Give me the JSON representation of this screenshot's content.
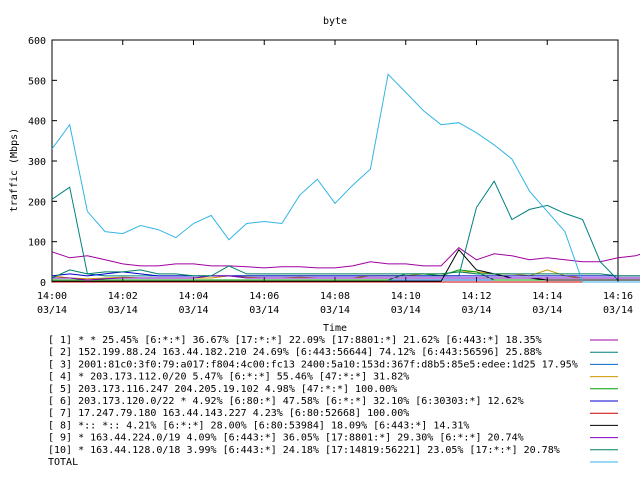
{
  "chart_data": {
    "type": "line",
    "title": "byte",
    "xlabel": "Time",
    "ylabel": "traffic (Mbps)",
    "ylim": [
      0,
      600
    ],
    "xlim": [
      0,
      16
    ],
    "yticks": [
      "0",
      "100",
      "200",
      "300",
      "400",
      "500",
      "600"
    ],
    "xticks": [
      {
        "time": "14:00",
        "date": "03/14"
      },
      {
        "time": "14:02",
        "date": "03/14"
      },
      {
        "time": "14:04",
        "date": "03/14"
      },
      {
        "time": "14:06",
        "date": "03/14"
      },
      {
        "time": "14:08",
        "date": "03/14"
      },
      {
        "time": "14:10",
        "date": "03/14"
      },
      {
        "time": "14:12",
        "date": "03/14"
      },
      {
        "time": "14:14",
        "date": "03/14"
      },
      {
        "time": "14:16",
        "date": "03/14"
      }
    ],
    "x_step_minutes": 0.5,
    "series": [
      {
        "label": "[ 1] * * 25.45%  [6:*:*] 36.67% [17:*:*] 22.09% [17:8801:*] 21.62% [6:443:*] 18.35%",
        "color": "#a000a0",
        "values": [
          75,
          60,
          65,
          55,
          45,
          40,
          40,
          45,
          45,
          40,
          40,
          38,
          35,
          38,
          38,
          35,
          35,
          40,
          50,
          45,
          45,
          40,
          40,
          85,
          55,
          70,
          65,
          55,
          60,
          55,
          50,
          50,
          60,
          65,
          80,
          95,
          75,
          75,
          60,
          5
        ]
      },
      {
        "label": "[ 2] 152.199.88.24 163.44.182.210 24.69%  [6:443:56644] 74.12% [6:443:56596] 25.88%",
        "color": "#008080",
        "values": [
          205,
          235,
          20,
          15,
          15,
          15,
          15,
          15,
          15,
          15,
          15,
          15,
          15,
          15,
          15,
          15,
          15,
          15,
          15,
          15,
          15,
          15,
          15,
          15,
          185,
          250,
          155,
          180,
          190,
          170,
          155,
          50,
          5,
          5,
          5,
          5,
          5,
          5,
          5,
          0
        ]
      },
      {
        "label": "[ 3] 2001:81c0:3f0:79:a017:f804:4c00:fc13 2400:5a10:153d:367f:d8b5:85e5:edee:1d25 17.95%",
        "color": "#0066cc",
        "values": [
          5,
          5,
          5,
          5,
          5,
          5,
          5,
          5,
          5,
          5,
          5,
          5,
          5,
          5,
          5,
          5,
          5,
          5,
          5,
          5,
          5,
          5,
          5,
          5,
          5,
          5,
          5,
          5,
          5,
          5,
          5,
          5,
          5,
          5,
          5,
          5,
          5,
          5,
          5,
          0
        ]
      },
      {
        "label": "[ 4] * 203.173.112.0/20 5.47%  [6:*:*] 55.46% [47:*:*] 31.82%",
        "color": "#cc9900",
        "values": [
          15,
          10,
          8,
          10,
          12,
          10,
          10,
          10,
          10,
          10,
          15,
          12,
          10,
          10,
          12,
          10,
          10,
          10,
          15,
          15,
          15,
          20,
          20,
          25,
          25,
          20,
          20,
          15,
          30,
          15,
          10,
          10,
          10,
          10,
          10,
          10,
          10,
          10,
          10,
          0
        ]
      },
      {
        "label": "[ 5] 203.173.116.247 204.205.19.102 4.98%  [47:*:*] 100.00%",
        "color": "#00a000",
        "values": [
          5,
          5,
          5,
          5,
          5,
          5,
          5,
          5,
          5,
          5,
          5,
          5,
          5,
          5,
          5,
          5,
          5,
          5,
          5,
          5,
          20,
          20,
          15,
          30,
          25,
          5,
          5,
          5,
          5,
          5,
          5,
          5,
          5,
          5,
          5,
          5,
          5,
          5,
          5,
          0
        ]
      },
      {
        "label": "[ 6] 203.173.120.0/22 * 4.92%  [6:80:*] 47.58% [6:*:*] 32.10% [6:30303:*] 12.62%",
        "color": "#0000cc",
        "values": [
          15,
          20,
          15,
          20,
          25,
          20,
          15,
          15,
          15,
          15,
          15,
          15,
          15,
          15,
          15,
          15,
          15,
          15,
          15,
          15,
          15,
          15,
          15,
          15,
          15,
          15,
          15,
          15,
          15,
          15,
          15,
          15,
          15,
          15,
          15,
          15,
          15,
          15,
          10,
          0
        ]
      },
      {
        "label": "[ 7] 17.247.79.180 163.44.143.227 4.23%  [6:80:52668] 100.00%",
        "color": "#cc0000",
        "values": [
          0,
          0,
          0,
          0,
          0,
          0,
          0,
          0,
          0,
          0,
          0,
          0,
          0,
          0,
          0,
          0,
          0,
          0,
          0,
          0,
          0,
          0,
          0,
          0,
          0,
          0,
          0,
          0,
          0,
          0,
          0,
          0,
          0,
          0,
          0,
          0,
          0,
          0,
          0,
          0
        ]
      },
      {
        "label": "[ 8] *:: *:: 4.21%  [6:*:*] 28.00% [6:80:53984] 18.09% [6:443:*] 14.31%",
        "color": "#000000",
        "values": [
          2,
          2,
          2,
          2,
          2,
          2,
          2,
          2,
          2,
          2,
          2,
          2,
          2,
          2,
          2,
          2,
          2,
          2,
          2,
          2,
          2,
          2,
          2,
          80,
          30,
          20,
          10,
          10,
          5,
          5,
          5,
          5,
          5,
          5,
          5,
          5,
          5,
          5,
          5,
          0
        ]
      },
      {
        "label": "[ 9] * 163.44.224.0/19 4.09%  [6:443:*] 36.05% [17:8801:*] 29.30% [6:*:*] 20.74%",
        "color": "#8000c0",
        "values": [
          10,
          10,
          5,
          8,
          10,
          10,
          10,
          10,
          10,
          15,
          15,
          10,
          10,
          10,
          10,
          10,
          10,
          10,
          10,
          10,
          10,
          10,
          10,
          10,
          10,
          10,
          10,
          10,
          10,
          10,
          10,
          10,
          10,
          10,
          10,
          10,
          10,
          10,
          10,
          0
        ]
      },
      {
        "label": "[10] * 163.44.128.0/18 3.99%  [6:443:*] 24.18% [17:14819:56221] 23.05% [17:*:*] 20.78%",
        "color": "#008060",
        "values": [
          10,
          30,
          20,
          25,
          25,
          30,
          20,
          20,
          15,
          15,
          40,
          20,
          20,
          20,
          20,
          20,
          20,
          20,
          20,
          20,
          20,
          20,
          20,
          25,
          20,
          20,
          20,
          20,
          20,
          20,
          20,
          20,
          15,
          15,
          15,
          15,
          15,
          15,
          15,
          0
        ]
      },
      {
        "label": "TOTAL",
        "color": "#33b5e5",
        "values": [
          330,
          390,
          175,
          125,
          120,
          140,
          130,
          110,
          145,
          165,
          105,
          145,
          150,
          145,
          215,
          255,
          195,
          240,
          280,
          515,
          470,
          425,
          390,
          395,
          370,
          340,
          305,
          225,
          175,
          125,
          0,
          0,
          0,
          0,
          0,
          0,
          0,
          0,
          0,
          0
        ]
      }
    ]
  }
}
